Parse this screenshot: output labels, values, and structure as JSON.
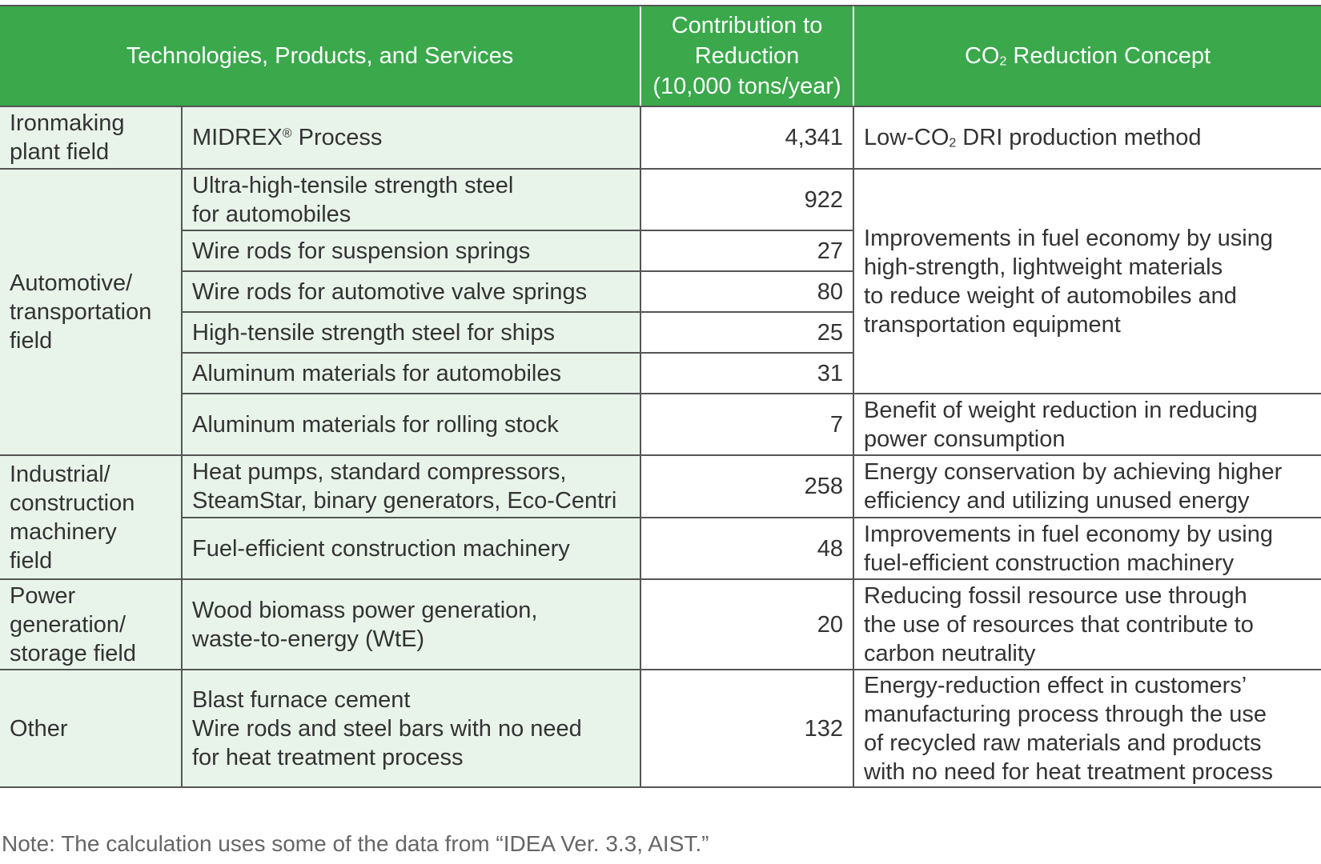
{
  "header": {
    "col1": "Technologies, Products, and Services",
    "col2_lines": [
      "Contribution to",
      "Reduction",
      "(10,000 tons/year)"
    ],
    "col3_pre": "CO",
    "col3_sub": "2",
    "col3_post": " Reduction Concept"
  },
  "rows": {
    "ironmaking": {
      "field": [
        "Ironmaking",
        "plant field"
      ],
      "product_name": "MIDREX",
      "product_mark": "®",
      "product_suffix": " Process",
      "value": "4,341",
      "concept_pre": "Low-CO",
      "concept_sub": "2",
      "concept_post": " DRI production method"
    },
    "automotive": {
      "field": [
        "Automotive/",
        "transportation",
        "field"
      ],
      "items": [
        {
          "product": [
            "Ultra-high-tensile strength steel",
            "for automobiles"
          ],
          "value": "922"
        },
        {
          "product": [
            "Wire rods for suspension springs"
          ],
          "value": "27"
        },
        {
          "product": [
            "Wire rods for automotive valve springs"
          ],
          "value": "80"
        },
        {
          "product": [
            "High-tensile strength steel for ships"
          ],
          "value": "25"
        },
        {
          "product": [
            "Aluminum materials for automobiles"
          ],
          "value": "31"
        },
        {
          "product": [
            "Aluminum materials for rolling stock"
          ],
          "value": "7"
        }
      ],
      "concept_shared": [
        "Improvements in fuel economy by using",
        "high-strength, lightweight materials",
        "to reduce weight of automobiles and",
        "transportation equipment"
      ],
      "concept_rolling": [
        "Benefit of weight reduction in reducing",
        "power consumption"
      ]
    },
    "industrial": {
      "field": [
        "Industrial/",
        "construction",
        "machinery",
        "field"
      ],
      "items": [
        {
          "product": [
            "Heat pumps, standard compressors,",
            "SteamStar, binary generators, Eco-Centri"
          ],
          "value": "258",
          "concept": [
            "Energy conservation by achieving higher",
            "efficiency and utilizing unused energy"
          ]
        },
        {
          "product": [
            "Fuel-efficient construction machinery"
          ],
          "value": "48",
          "concept": [
            "Improvements in fuel economy by using",
            "fuel-efficient construction machinery"
          ]
        }
      ]
    },
    "power": {
      "field": [
        "Power",
        "generation/",
        "storage field"
      ],
      "product": [
        "Wood biomass power generation,",
        "waste-to-energy (WtE)"
      ],
      "value": "20",
      "concept": [
        "Reducing fossil resource use through",
        "the use of resources that contribute to",
        "carbon neutrality"
      ]
    },
    "other": {
      "field": [
        "Other"
      ],
      "product": [
        "Blast furnace cement",
        "Wire rods and steel bars with no need",
        "for heat treatment process"
      ],
      "value": "132",
      "concept": [
        "Energy-reduction effect in customers’",
        "manufacturing process through the use",
        "of recycled raw materials and products",
        "with no need for heat treatment process"
      ]
    }
  },
  "note": "Note: The calculation uses some of the data from “IDEA Ver. 3.3, AIST.”",
  "colors": {
    "header_bg": "#3aa84b",
    "light_green": "#e8f4ea",
    "border": "#555555"
  }
}
